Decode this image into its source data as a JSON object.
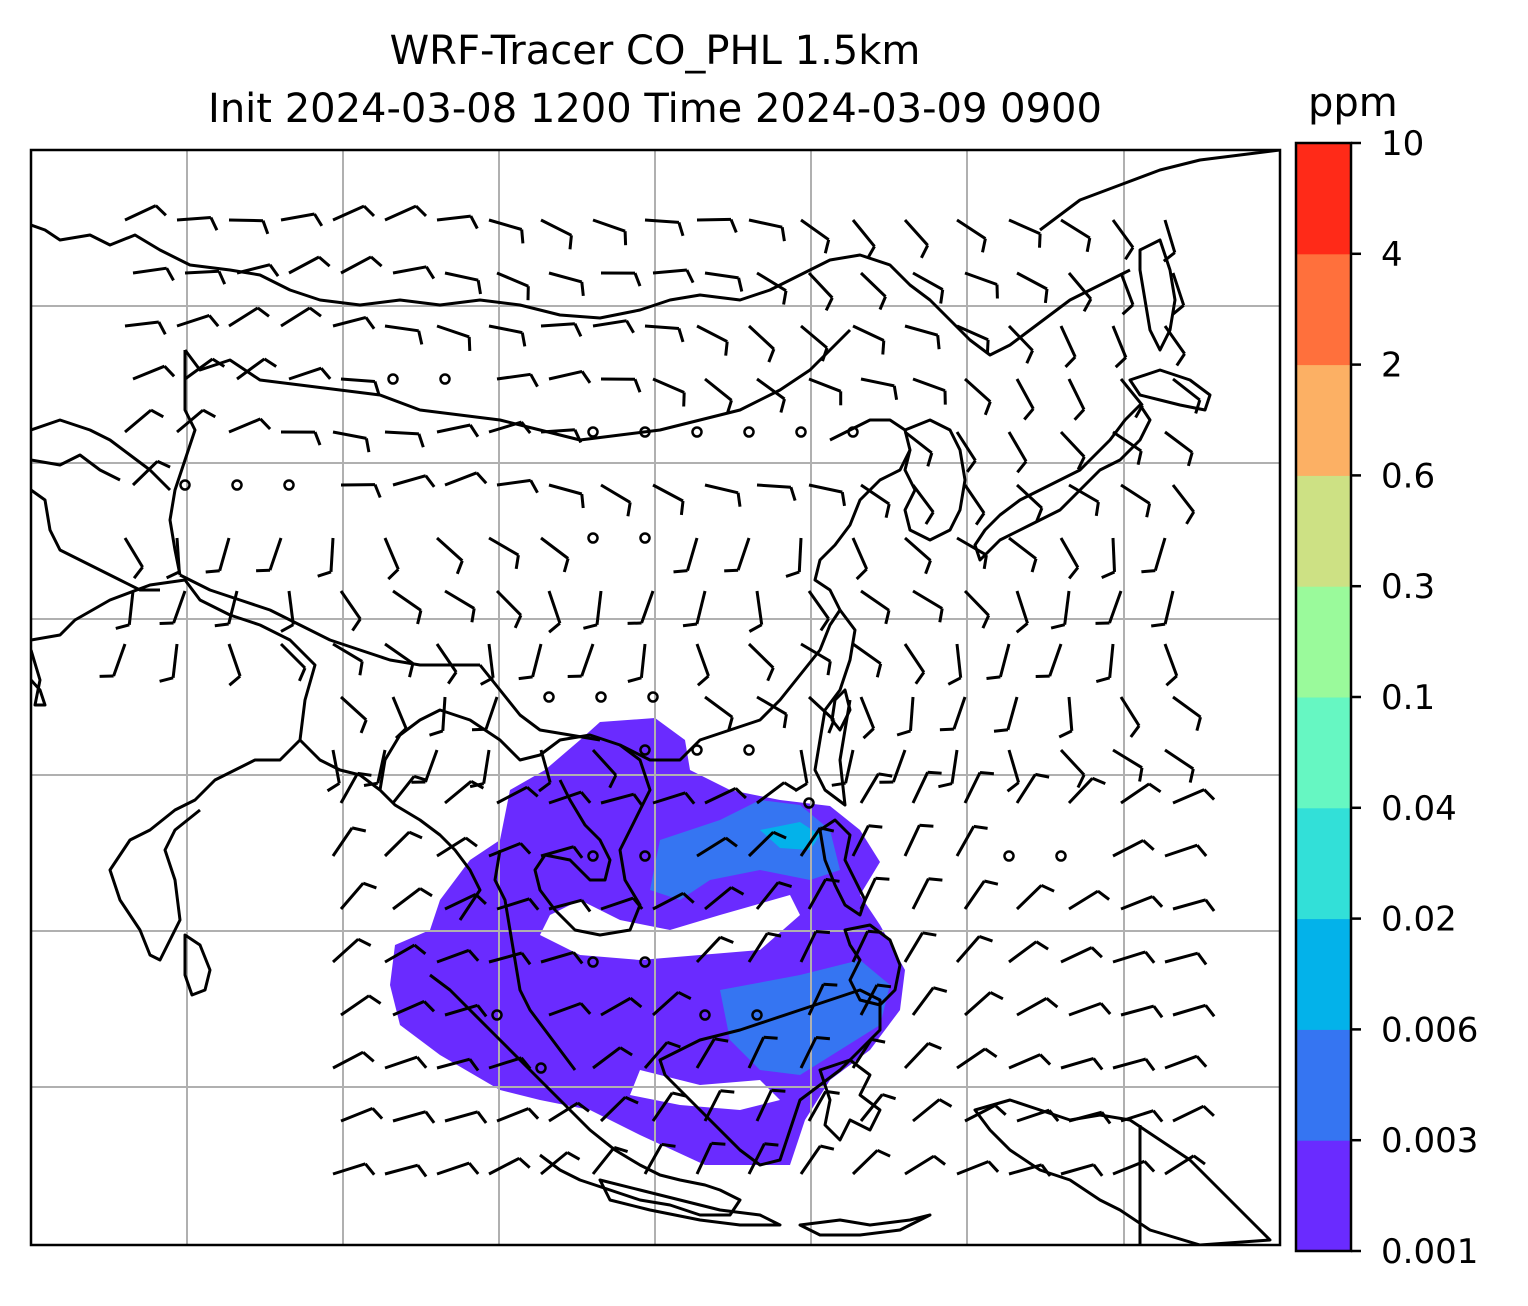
{
  "title": {
    "line1": "WRF-Tracer CO_PHL 1.5km",
    "line2": "Init 2024-03-08 1200 Time 2024-03-09 0900"
  },
  "colorbar": {
    "unit": "ppm",
    "levels": [
      "0.001",
      "0.003",
      "0.006",
      "0.02",
      "0.04",
      "0.1",
      "0.3",
      "0.6",
      "2",
      "4",
      "10"
    ],
    "colors": [
      "#6a2bff",
      "#3575f2",
      "#03b2ea",
      "#32e0d8",
      "#66f7c2",
      "#9afa9b",
      "#cde184",
      "#fcb064",
      "#ff703c",
      "#ff2a18"
    ]
  },
  "map": {
    "coastline_color": "#000000",
    "grid_color": "#b0b0b0",
    "tracer_color_low": "#6a2bff",
    "tracer_color_mid": "#3575f2",
    "tracer_color_high": "#03b2ea"
  }
}
